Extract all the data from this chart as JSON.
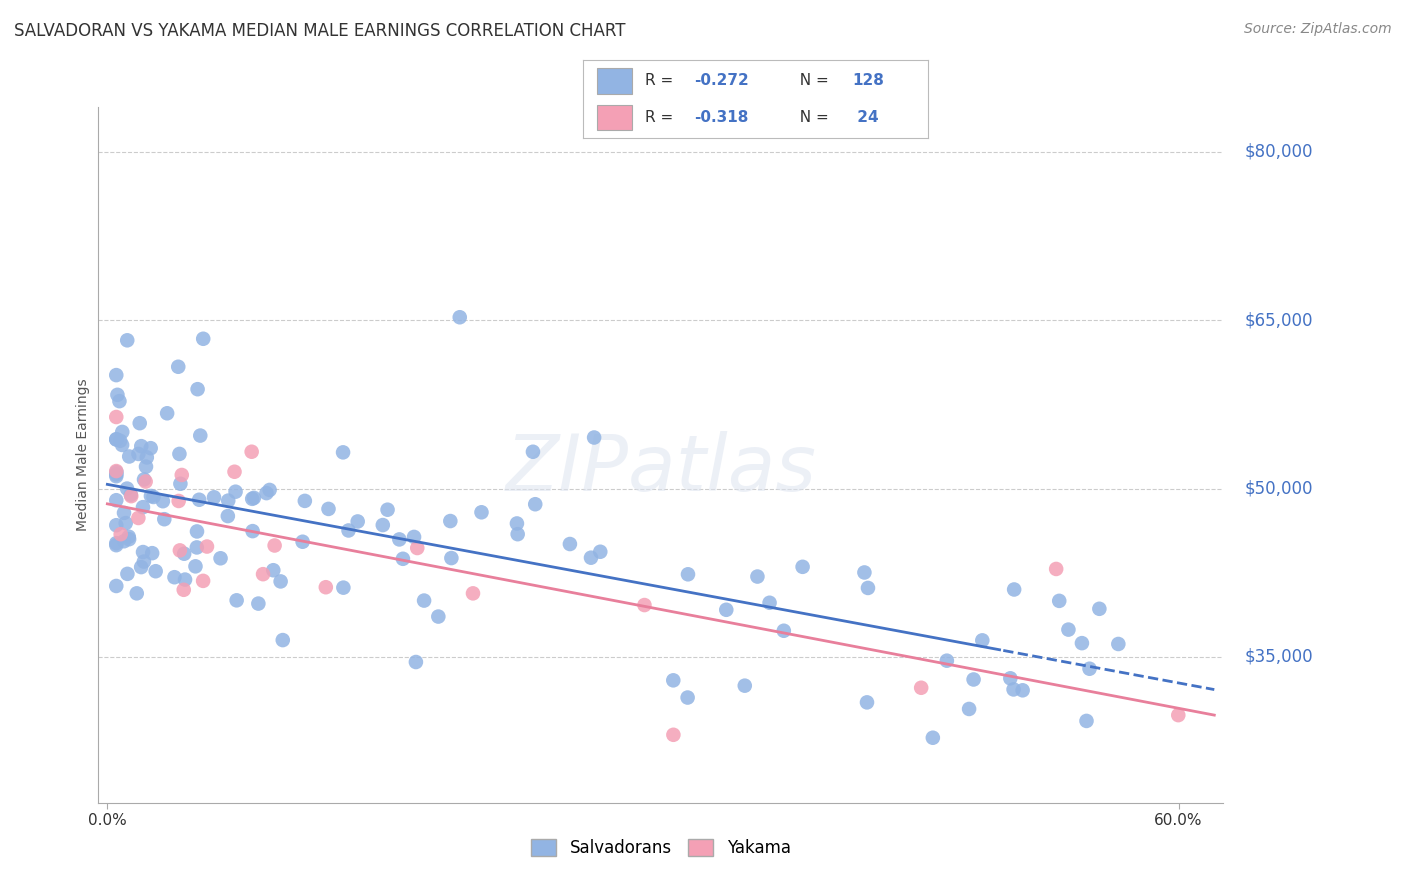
{
  "title": "SALVADORAN VS YAKAMA MEDIAN MALE EARNINGS CORRELATION CHART",
  "source": "Source: ZipAtlas.com",
  "ylabel": "Median Male Earnings",
  "y_tick_labels": [
    "$35,000",
    "$50,000",
    "$65,000",
    "$80,000"
  ],
  "y_tick_values": [
    35000,
    50000,
    65000,
    80000
  ],
  "y_min": 22000,
  "y_max": 84000,
  "x_min": -0.005,
  "x_max": 0.625,
  "salvadoran_color": "#92b4e3",
  "yakama_color": "#f4a0b5",
  "salvadoran_line_color": "#4472c4",
  "yakama_line_color": "#e87f9b",
  "R_salv": -0.272,
  "N_salv": 128,
  "R_yak": -0.318,
  "N_yak": 24,
  "watermark": "ZIPatlas",
  "background_color": "#ffffff",
  "grid_color": "#cccccc",
  "right_label_color": "#4472c4",
  "legend_text_color": "#333333",
  "title_color": "#333333",
  "source_color": "#888888",
  "ylabel_color": "#555555"
}
